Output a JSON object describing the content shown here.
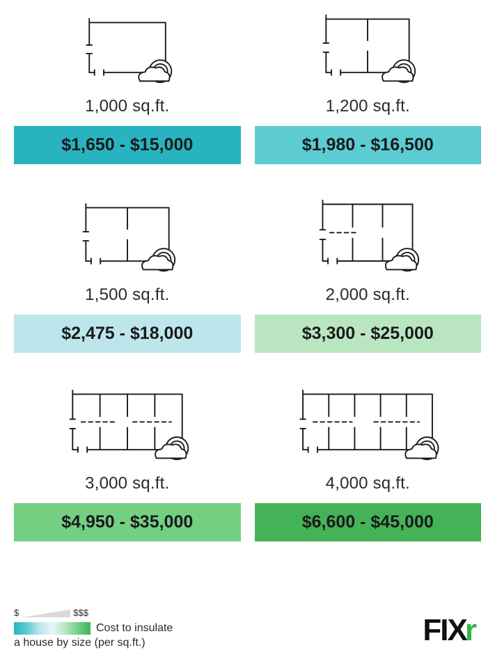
{
  "infographic": {
    "type": "infographic",
    "background_color": "#ffffff",
    "text_color": "#2a2a2a",
    "label_fontsize": 24,
    "cost_fontsize": 25,
    "cost_fontweight": 700,
    "icon_stroke": "#1a1a1a",
    "icon_stroke_width": 2,
    "cards": [
      {
        "size_label": "1,000 sq.ft.",
        "cost_label": "$1,650 - $15,000",
        "bar_color": "#27b4c0",
        "rooms": 1
      },
      {
        "size_label": "1,200 sq.ft.",
        "cost_label": "$1,980 - $16,500",
        "bar_color": "#5dcbd2",
        "rooms": 2
      },
      {
        "size_label": "1,500 sq.ft.",
        "cost_label": "$2,475 - $18,000",
        "bar_color": "#bce6eb",
        "rooms": 2
      },
      {
        "size_label": "2,000 sq.ft.",
        "cost_label": "$3,300 - $25,000",
        "bar_color": "#b9e6c1",
        "rooms": 3
      },
      {
        "size_label": "3,000 sq.ft.",
        "cost_label": "$4,950 - $35,000",
        "bar_color": "#73d083",
        "rooms": 4
      },
      {
        "size_label": "4,000 sq.ft.",
        "cost_label": "$6,600 - $45,000",
        "bar_color": "#44b357",
        "rooms": 5
      }
    ],
    "gradient_colors": [
      "#27b4c0",
      "#5dcbd2",
      "#bce6eb",
      "#e6f5f7",
      "#b9e6c1",
      "#73d083",
      "#44b357"
    ]
  },
  "legend": {
    "dollar_low": "$",
    "dollar_high": "$$$",
    "line1": "Cost to insulate",
    "line2": "a house by size (per sq.ft.)"
  },
  "logo": {
    "text_main": "FIX",
    "text_accent": "r",
    "accent_color": "#35b547"
  }
}
